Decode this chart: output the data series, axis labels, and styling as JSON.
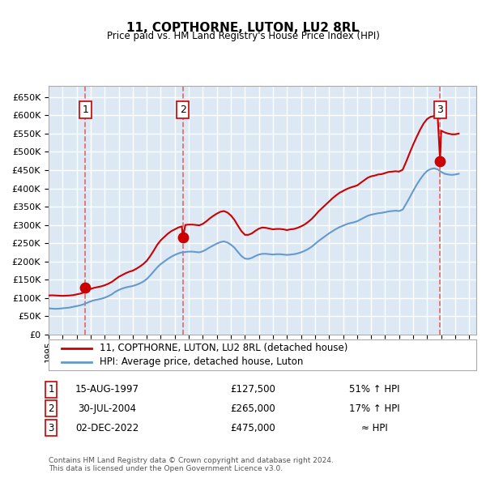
{
  "title": "11, COPTHORNE, LUTON, LU2 8RL",
  "subtitle": "Price paid vs. HM Land Registry's House Price Index (HPI)",
  "ylim": [
    0,
    680000
  ],
  "yticks": [
    0,
    50000,
    100000,
    150000,
    200000,
    250000,
    300000,
    350000,
    400000,
    450000,
    500000,
    550000,
    600000,
    650000
  ],
  "xlim_start": 1995.0,
  "xlim_end": 2025.5,
  "background_color": "#ffffff",
  "plot_bg_color": "#dce9f5",
  "grid_color": "#ffffff",
  "transactions": [
    {
      "date_num": 1997.617,
      "price": 127500,
      "label": "1"
    },
    {
      "date_num": 2004.578,
      "price": 265000,
      "label": "2"
    },
    {
      "date_num": 2022.917,
      "price": 475000,
      "label": "3"
    }
  ],
  "vline_color": "#e05050",
  "vline_style": "--",
  "dot_color": "#cc0000",
  "dot_size": 80,
  "property_line_color": "#cc0000",
  "hpi_line_color": "#6699cc",
  "legend_property_label": "11, COPTHORNE, LUTON, LU2 8RL (detached house)",
  "legend_hpi_label": "HPI: Average price, detached house, Luton",
  "table_rows": [
    {
      "num": "1",
      "date": "15-AUG-1997",
      "price": "£127,500",
      "change": "51% ↑ HPI"
    },
    {
      "num": "2",
      "date": "30-JUL-2004",
      "price": "£265,000",
      "change": "17% ↑ HPI"
    },
    {
      "num": "3",
      "date": "02-DEC-2022",
      "price": "£475,000",
      "change": "≈ HPI"
    }
  ],
  "footer": "Contains HM Land Registry data © Crown copyright and database right 2024.\nThis data is licensed under the Open Government Licence v3.0.",
  "hpi_data_x": [
    1995.0,
    1995.25,
    1995.5,
    1995.75,
    1996.0,
    1996.25,
    1996.5,
    1996.75,
    1997.0,
    1997.25,
    1997.5,
    1997.75,
    1998.0,
    1998.25,
    1998.5,
    1998.75,
    1999.0,
    1999.25,
    1999.5,
    1999.75,
    2000.0,
    2000.25,
    2000.5,
    2000.75,
    2001.0,
    2001.25,
    2001.5,
    2001.75,
    2002.0,
    2002.25,
    2002.5,
    2002.75,
    2003.0,
    2003.25,
    2003.5,
    2003.75,
    2004.0,
    2004.25,
    2004.5,
    2004.75,
    2005.0,
    2005.25,
    2005.5,
    2005.75,
    2006.0,
    2006.25,
    2006.5,
    2006.75,
    2007.0,
    2007.25,
    2007.5,
    2007.75,
    2008.0,
    2008.25,
    2008.5,
    2008.75,
    2009.0,
    2009.25,
    2009.5,
    2009.75,
    2010.0,
    2010.25,
    2010.5,
    2010.75,
    2011.0,
    2011.25,
    2011.5,
    2011.75,
    2012.0,
    2012.25,
    2012.5,
    2012.75,
    2013.0,
    2013.25,
    2013.5,
    2013.75,
    2014.0,
    2014.25,
    2014.5,
    2014.75,
    2015.0,
    2015.25,
    2015.5,
    2015.75,
    2016.0,
    2016.25,
    2016.5,
    2016.75,
    2017.0,
    2017.25,
    2017.5,
    2017.75,
    2018.0,
    2018.25,
    2018.5,
    2018.75,
    2019.0,
    2019.25,
    2019.5,
    2019.75,
    2020.0,
    2020.25,
    2020.5,
    2020.75,
    2021.0,
    2021.25,
    2021.5,
    2021.75,
    2022.0,
    2022.25,
    2022.5,
    2022.75,
    2023.0,
    2023.25,
    2023.5,
    2023.75,
    2024.0,
    2024.25
  ],
  "hpi_data_y": [
    72000,
    71000,
    70500,
    71000,
    72000,
    73000,
    74000,
    76000,
    78000,
    80000,
    83000,
    87000,
    91000,
    94000,
    96000,
    98000,
    101000,
    105000,
    110000,
    117000,
    122000,
    126000,
    129000,
    131000,
    133000,
    136000,
    140000,
    145000,
    152000,
    162000,
    173000,
    184000,
    193000,
    200000,
    207000,
    213000,
    218000,
    222000,
    225000,
    226000,
    227000,
    227000,
    226000,
    225000,
    228000,
    233000,
    239000,
    244000,
    249000,
    253000,
    255000,
    252000,
    246000,
    238000,
    226000,
    215000,
    208000,
    207000,
    210000,
    215000,
    219000,
    221000,
    221000,
    220000,
    219000,
    220000,
    220000,
    219000,
    218000,
    219000,
    220000,
    222000,
    225000,
    229000,
    234000,
    240000,
    248000,
    256000,
    263000,
    270000,
    277000,
    283000,
    289000,
    294000,
    298000,
    302000,
    305000,
    307000,
    310000,
    315000,
    320000,
    325000,
    328000,
    330000,
    332000,
    333000,
    335000,
    337000,
    338000,
    339000,
    338000,
    342000,
    358000,
    375000,
    393000,
    410000,
    425000,
    438000,
    448000,
    453000,
    455000,
    452000,
    445000,
    440000,
    438000,
    437000,
    438000,
    440000
  ],
  "property_data_x": [
    1995.0,
    1995.25,
    1995.5,
    1995.75,
    1996.0,
    1996.25,
    1996.5,
    1996.75,
    1997.0,
    1997.25,
    1997.5,
    1997.617,
    1997.75,
    1998.0,
    1998.25,
    1998.5,
    1998.75,
    1999.0,
    1999.25,
    1999.5,
    1999.75,
    2000.0,
    2000.25,
    2000.5,
    2000.75,
    2001.0,
    2001.25,
    2001.5,
    2001.75,
    2002.0,
    2002.25,
    2002.5,
    2002.75,
    2003.0,
    2003.25,
    2003.5,
    2003.75,
    2004.0,
    2004.25,
    2004.5,
    2004.578,
    2004.75,
    2005.0,
    2005.25,
    2005.5,
    2005.75,
    2006.0,
    2006.25,
    2006.5,
    2006.75,
    2007.0,
    2007.25,
    2007.5,
    2007.75,
    2008.0,
    2008.25,
    2008.5,
    2008.75,
    2009.0,
    2009.25,
    2009.5,
    2009.75,
    2010.0,
    2010.25,
    2010.5,
    2010.75,
    2011.0,
    2011.25,
    2011.5,
    2011.75,
    2012.0,
    2012.25,
    2012.5,
    2012.75,
    2013.0,
    2013.25,
    2013.5,
    2013.75,
    2014.0,
    2014.25,
    2014.5,
    2014.75,
    2015.0,
    2015.25,
    2015.5,
    2015.75,
    2016.0,
    2016.25,
    2016.5,
    2016.75,
    2017.0,
    2017.25,
    2017.5,
    2017.75,
    2018.0,
    2018.25,
    2018.5,
    2018.75,
    2019.0,
    2019.25,
    2019.5,
    2019.75,
    2020.0,
    2020.25,
    2020.5,
    2020.75,
    2021.0,
    2021.25,
    2021.5,
    2021.75,
    2022.0,
    2022.25,
    2022.5,
    2022.75,
    2022.917,
    2023.0,
    2023.25,
    2023.5,
    2023.75,
    2024.0,
    2024.25
  ],
  "property_data_y": [
    107000,
    107500,
    107000,
    106500,
    106000,
    106500,
    107000,
    108000,
    110000,
    112000,
    115000,
    127500,
    121000,
    125000,
    128000,
    130000,
    132000,
    135000,
    139000,
    144000,
    151000,
    158000,
    163000,
    168000,
    172000,
    175000,
    180000,
    186000,
    193000,
    202000,
    215000,
    230000,
    246000,
    258000,
    267000,
    276000,
    283000,
    288000,
    293000,
    296000,
    265000,
    300000,
    301000,
    301000,
    300000,
    299000,
    303000,
    310000,
    318000,
    325000,
    331000,
    336000,
    338000,
    334000,
    326000,
    314000,
    298000,
    283000,
    273000,
    273000,
    277000,
    284000,
    290000,
    293000,
    292000,
    290000,
    288000,
    289000,
    289000,
    288000,
    286000,
    288000,
    289000,
    292000,
    296000,
    301000,
    308000,
    316000,
    326000,
    337000,
    346000,
    355000,
    364000,
    373000,
    381000,
    388000,
    393000,
    398000,
    402000,
    405000,
    408000,
    415000,
    422000,
    429000,
    433000,
    435000,
    438000,
    439000,
    442000,
    445000,
    446000,
    447000,
    446000,
    451000,
    473000,
    497000,
    520000,
    541000,
    561000,
    578000,
    590000,
    596000,
    598000,
    595000,
    475000,
    558000,
    553000,
    550000,
    548000,
    548000,
    550000
  ]
}
